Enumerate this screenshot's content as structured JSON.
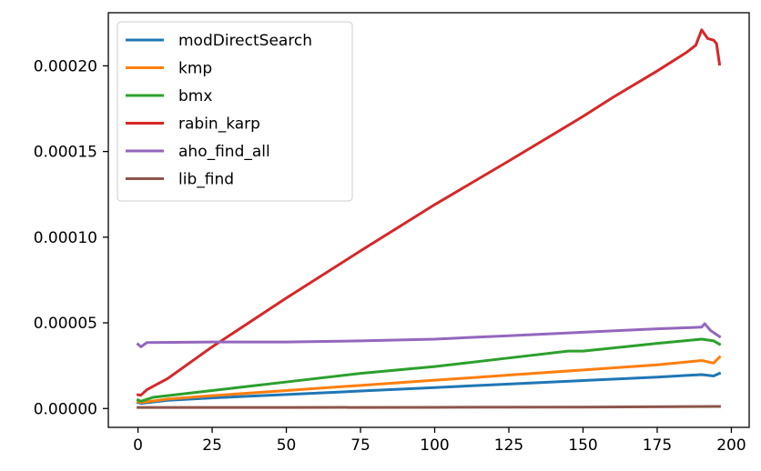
{
  "chart_data": {
    "type": "line",
    "title": "",
    "xlabel": "",
    "ylabel": "",
    "xlim": [
      -10,
      206
    ],
    "ylim": [
      -1.1e-05,
      0.000231
    ],
    "x_ticks": [
      {
        "value": 0,
        "label": "0"
      },
      {
        "value": 25,
        "label": "25"
      },
      {
        "value": 50,
        "label": "50"
      },
      {
        "value": 75,
        "label": "75"
      },
      {
        "value": 100,
        "label": "100"
      },
      {
        "value": 125,
        "label": "125"
      },
      {
        "value": 150,
        "label": "150"
      },
      {
        "value": 175,
        "label": "175"
      },
      {
        "value": 200,
        "label": "200"
      }
    ],
    "y_ticks": [
      {
        "value": 0.0,
        "label": "0.00000"
      },
      {
        "value": 5e-05,
        "label": "0.00005"
      },
      {
        "value": 0.0001,
        "label": "0.00010"
      },
      {
        "value": 0.00015,
        "label": "0.00015"
      },
      {
        "value": 0.0002,
        "label": "0.00020"
      }
    ],
    "grid": false,
    "legend_position": "top-left",
    "series": [
      {
        "name": "modDirectSearch",
        "color": "#1f77b4",
        "points": [
          [
            0,
            3.5e-06
          ],
          [
            1,
            3e-06
          ],
          [
            10,
            4.8e-06
          ],
          [
            25,
            6.2e-06
          ],
          [
            50,
            8.2e-06
          ],
          [
            75,
            1.02e-05
          ],
          [
            100,
            1.22e-05
          ],
          [
            125,
            1.43e-05
          ],
          [
            150,
            1.63e-05
          ],
          [
            175,
            1.83e-05
          ],
          [
            190,
            1.98e-05
          ],
          [
            194,
            1.9e-05
          ],
          [
            196,
            2.05e-05
          ]
        ]
      },
      {
        "name": "kmp",
        "color": "#ff7f0e",
        "points": [
          [
            0,
            4e-06
          ],
          [
            1,
            3.5e-06
          ],
          [
            10,
            5.5e-06
          ],
          [
            25,
            7.5e-06
          ],
          [
            50,
            1.05e-05
          ],
          [
            75,
            1.35e-05
          ],
          [
            100,
            1.65e-05
          ],
          [
            125,
            1.95e-05
          ],
          [
            150,
            2.25e-05
          ],
          [
            175,
            2.55e-05
          ],
          [
            190,
            2.8e-05
          ],
          [
            194,
            2.65e-05
          ],
          [
            196,
            3e-05
          ]
        ]
      },
      {
        "name": "bmx",
        "color": "#2ca02c",
        "points": [
          [
            0,
            5e-06
          ],
          [
            1,
            4.2e-06
          ],
          [
            5,
            6.5e-06
          ],
          [
            25,
            1.05e-05
          ],
          [
            50,
            1.55e-05
          ],
          [
            75,
            2.05e-05
          ],
          [
            100,
            2.45e-05
          ],
          [
            125,
            2.95e-05
          ],
          [
            145,
            3.35e-05
          ],
          [
            150,
            3.35e-05
          ],
          [
            175,
            3.8e-05
          ],
          [
            190,
            4.05e-05
          ],
          [
            194,
            3.95e-05
          ],
          [
            196,
            3.75e-05
          ]
        ]
      },
      {
        "name": "rabin_karp",
        "color": "#d62728",
        "points": [
          [
            0,
            8e-06
          ],
          [
            1,
            7.8e-06
          ],
          [
            3,
            1.1e-05
          ],
          [
            10,
            1.75e-05
          ],
          [
            25,
            3.6e-05
          ],
          [
            50,
            6.45e-05
          ],
          [
            75,
            9.2e-05
          ],
          [
            100,
            0.000119
          ],
          [
            125,
            0.0001445
          ],
          [
            150,
            0.0001705
          ],
          [
            160,
            0.0001815
          ],
          [
            175,
            0.000197
          ],
          [
            185,
            0.000208
          ],
          [
            188,
            0.000212
          ],
          [
            190,
            0.000221
          ],
          [
            192,
            0.000216
          ],
          [
            194,
            0.000215
          ],
          [
            195,
            0.000213
          ],
          [
            196,
            0.000201
          ]
        ]
      },
      {
        "name": "aho_find_all",
        "color": "#9467bd",
        "points": [
          [
            0,
            3.75e-05
          ],
          [
            1,
            3.6e-05
          ],
          [
            3,
            3.85e-05
          ],
          [
            25,
            3.88e-05
          ],
          [
            50,
            3.88e-05
          ],
          [
            75,
            3.95e-05
          ],
          [
            100,
            4.05e-05
          ],
          [
            125,
            4.25e-05
          ],
          [
            150,
            4.45e-05
          ],
          [
            175,
            4.65e-05
          ],
          [
            190,
            4.75e-05
          ],
          [
            191,
            4.95e-05
          ],
          [
            193,
            4.55e-05
          ],
          [
            196,
            4.2e-05
          ]
        ]
      },
      {
        "name": "lib_find",
        "color": "#8c564b",
        "points": [
          [
            0,
            6e-07
          ],
          [
            50,
            6e-07
          ],
          [
            100,
            7e-07
          ],
          [
            150,
            8e-07
          ],
          [
            196,
            1.2e-06
          ]
        ]
      }
    ]
  }
}
